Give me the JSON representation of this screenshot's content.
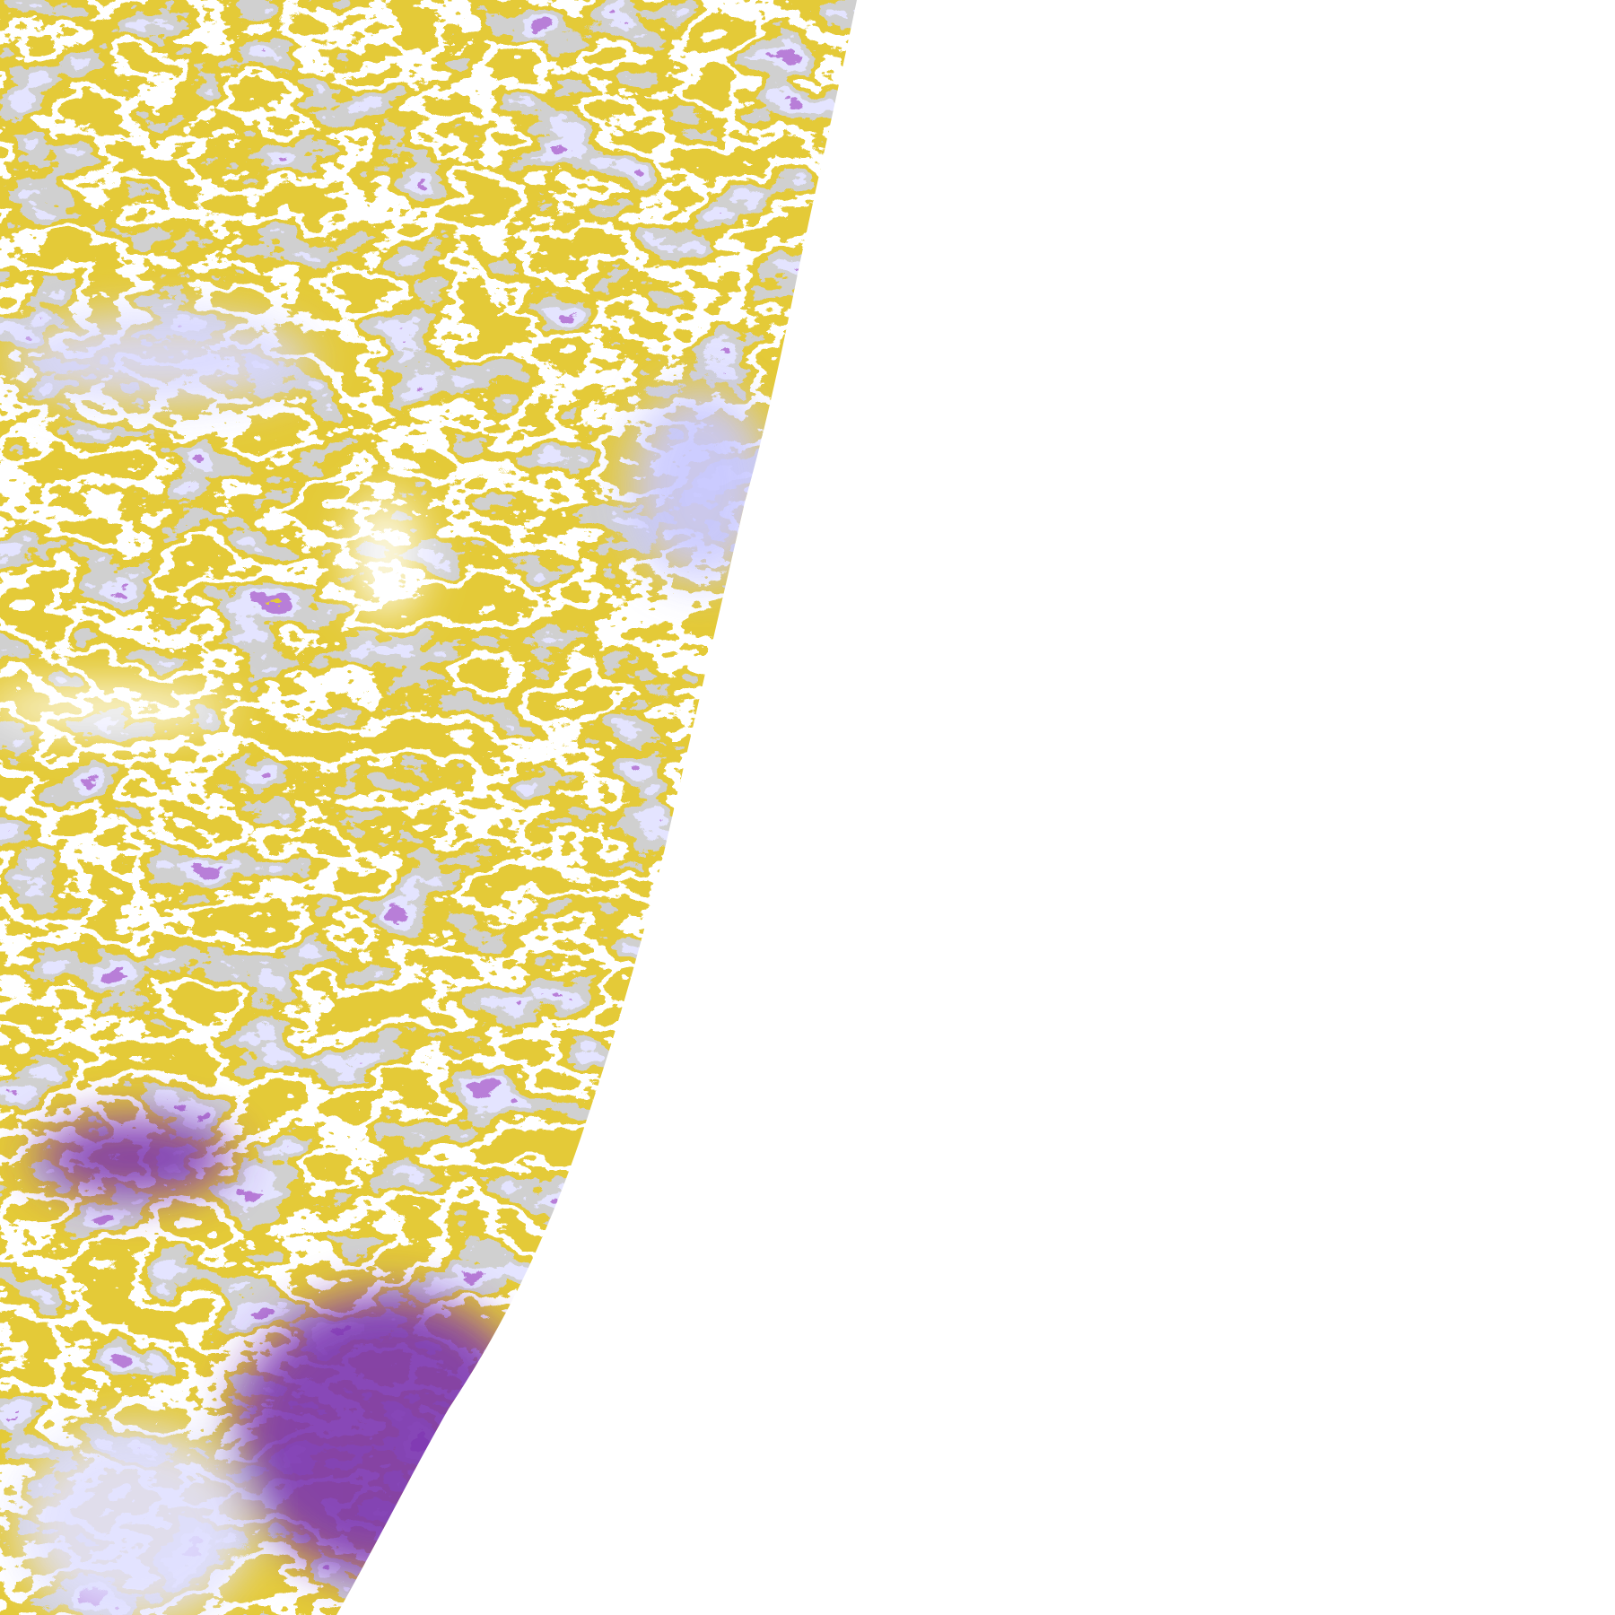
{
  "image": {
    "kind": "satellite-cloud-classification",
    "background": "#ffffff",
    "palette": {
      "clear": "#ffffff",
      "low_cloud": "#c8960a",
      "mid_cloud": "#a0a0a0",
      "high_cloud": "#c8c8ff",
      "thick_cloud": "#7b35b0",
      "deep_convection": "#d050e0"
    }
  }
}
